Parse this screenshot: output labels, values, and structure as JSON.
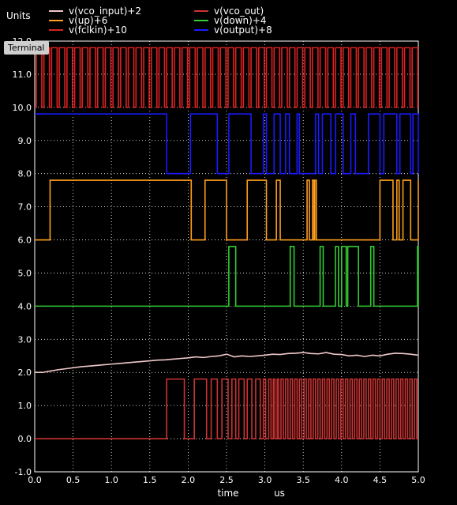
{
  "colors": {
    "background": "#000000",
    "frame": "#ffffff",
    "grid": "#ffffff",
    "text": "#ffffff"
  },
  "header": {
    "units_label": "Units"
  },
  "terminal_tab": {
    "label": "Terminal"
  },
  "chart_data": {
    "type": "line",
    "xlabel": "time",
    "xunit": "us",
    "xlim": [
      0.0,
      5.0
    ],
    "ylim": [
      -1.0,
      12.0
    ],
    "xticks": [
      "0.0",
      "0.5",
      "1.0",
      "1.5",
      "2.0",
      "2.5",
      "3.0",
      "3.5",
      "4.0",
      "4.5",
      "5.0"
    ],
    "yticks": [
      "-1.0",
      "0.0",
      "1.0",
      "2.0",
      "3.0",
      "4.0",
      "5.0",
      "6.0",
      "7.0",
      "8.0",
      "9.0",
      "10.0",
      "11.0",
      "12.0"
    ],
    "grid": true,
    "legend_position": "top",
    "series": [
      {
        "name": "v(vco_input)+2",
        "color": "#f0c8c8",
        "kind": "analog",
        "x": [
          0.0,
          0.1,
          0.2,
          0.3,
          0.4,
          0.5,
          0.6,
          0.7,
          0.8,
          0.9,
          1.0,
          1.1,
          1.2,
          1.3,
          1.4,
          1.5,
          1.6,
          1.7,
          1.8,
          1.9,
          2.0,
          2.1,
          2.2,
          2.3,
          2.4,
          2.5,
          2.6,
          2.7,
          2.8,
          2.9,
          3.0,
          3.1,
          3.2,
          3.3,
          3.4,
          3.5,
          3.6,
          3.7,
          3.8,
          3.9,
          4.0,
          4.1,
          4.2,
          4.3,
          4.4,
          4.5,
          4.6,
          4.7,
          4.8,
          4.9,
          5.0
        ],
        "values": [
          2.0,
          2.0,
          2.04,
          2.08,
          2.11,
          2.14,
          2.17,
          2.19,
          2.21,
          2.23,
          2.25,
          2.27,
          2.29,
          2.31,
          2.33,
          2.35,
          2.37,
          2.38,
          2.4,
          2.42,
          2.44,
          2.47,
          2.45,
          2.48,
          2.5,
          2.55,
          2.47,
          2.5,
          2.48,
          2.5,
          2.52,
          2.55,
          2.54,
          2.57,
          2.58,
          2.6,
          2.57,
          2.56,
          2.6,
          2.55,
          2.54,
          2.5,
          2.52,
          2.48,
          2.52,
          2.5,
          2.55,
          2.58,
          2.57,
          2.55,
          2.52
        ]
      },
      {
        "name": "v(vco_out)",
        "color": "#cc3333",
        "kind": "digital",
        "low": 0.0,
        "high": 1.8,
        "edges": [
          1.72,
          1.95,
          2.08,
          2.24,
          2.3,
          2.38,
          2.44,
          2.52,
          2.57,
          2.62,
          2.66,
          2.73,
          2.77,
          2.83,
          2.88,
          2.94,
          2.98,
          3.01,
          3.05,
          3.08,
          3.11,
          3.13,
          3.16,
          3.18,
          3.21,
          3.24,
          3.27,
          3.3,
          3.33,
          3.36,
          3.39,
          3.42,
          3.45,
          3.48,
          3.51,
          3.54,
          3.57,
          3.6,
          3.63,
          3.66,
          3.69,
          3.72,
          3.75,
          3.78,
          3.81,
          3.84,
          3.87,
          3.9,
          3.93,
          3.96,
          3.99,
          4.02,
          4.05,
          4.08,
          4.11,
          4.14,
          4.17,
          4.2,
          4.23,
          4.26,
          4.29,
          4.32,
          4.35,
          4.38,
          4.41,
          4.44,
          4.47,
          4.5,
          4.53,
          4.56,
          4.59,
          4.62,
          4.65,
          4.68,
          4.71,
          4.74,
          4.77,
          4.8,
          4.83,
          4.86,
          4.89,
          4.92,
          4.95,
          4.98
        ]
      },
      {
        "name": "v(up)+6",
        "color": "#ff9f1a",
        "kind": "digital",
        "low": 6.0,
        "high": 7.8,
        "edges": [
          0.2,
          2.04,
          2.22,
          2.5,
          2.77,
          3.02,
          3.15,
          3.2,
          3.55,
          3.58,
          3.62,
          3.64,
          3.65,
          3.67,
          4.5,
          4.67,
          4.72,
          4.75,
          4.8,
          4.9,
          5.0
        ]
      },
      {
        "name": "v(down)+4",
        "color": "#33cc33",
        "kind": "digital",
        "low": 4.0,
        "high": 5.8,
        "edges": [
          2.53,
          2.62,
          3.33,
          3.38,
          3.72,
          3.76,
          3.92,
          3.96,
          4.0,
          4.06,
          4.08,
          4.22,
          4.38,
          4.42,
          4.99,
          5.0
        ]
      },
      {
        "name": "v(fclkin)+10",
        "color": "#dd2222",
        "kind": "clock",
        "low": 10.0,
        "high": 11.8,
        "period": 0.1,
        "start": 0.02,
        "high_time": 0.072
      },
      {
        "name": "v(output)+8",
        "color": "#1a1aff",
        "kind": "digital",
        "start_level": 9.8,
        "low": 8.0,
        "high": 9.8,
        "edges": [
          1.72,
          2.03,
          2.38,
          2.53,
          2.82,
          2.98,
          3.02,
          3.12,
          3.2,
          3.27,
          3.32,
          3.42,
          3.45,
          3.66,
          3.7,
          3.75,
          3.86,
          3.92,
          4.02,
          4.12,
          4.18,
          4.35,
          4.5,
          4.55,
          4.72,
          4.76,
          4.9,
          4.93,
          5.0
        ]
      }
    ]
  }
}
